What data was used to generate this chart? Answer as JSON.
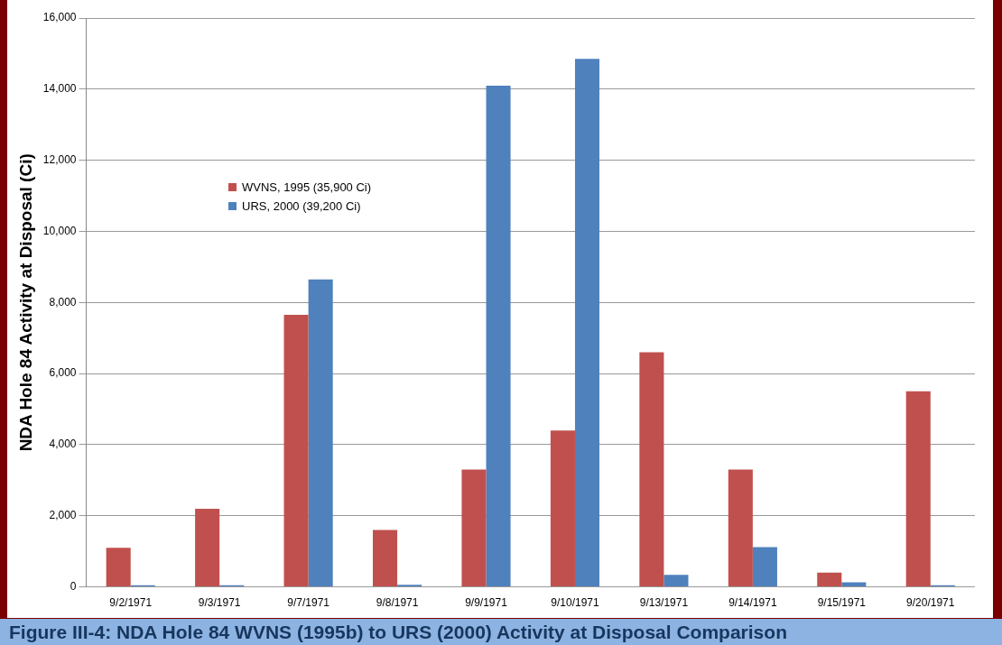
{
  "chart_data": {
    "type": "bar",
    "ylabel": "NDA Hole 84 Activity at Disposal (Ci)",
    "categories": [
      "9/2/1971",
      "9/3/1971",
      "9/7/1971",
      "9/8/1971",
      "9/9/1971",
      "9/10/1971",
      "9/13/1971",
      "9/14/1971",
      "9/15/1971",
      "9/20/1971"
    ],
    "series": [
      {
        "name": "WVNS, 1995  (35,900  Ci)",
        "color": "#c0504d",
        "values": [
          1100,
          2200,
          7650,
          1600,
          3300,
          4400,
          6600,
          3300,
          400,
          5500
        ]
      },
      {
        "name": "URS, 2000  (39,200  Ci)",
        "color": "#4f81bd",
        "values": [
          50,
          50,
          8650,
          60,
          14100,
          14850,
          340,
          1120,
          130,
          50
        ]
      }
    ],
    "ylim": [
      0,
      16000
    ],
    "yticks": [
      {
        "value": 0,
        "label": "0"
      },
      {
        "value": 2000,
        "label": "2,000"
      },
      {
        "value": 4000,
        "label": "4,000"
      },
      {
        "value": 6000,
        "label": "6,000"
      },
      {
        "value": 8000,
        "label": "8,000"
      },
      {
        "value": 10000,
        "label": "10,000"
      },
      {
        "value": 12000,
        "label": "12,000"
      },
      {
        "value": 14000,
        "label": "14,000"
      },
      {
        "value": 16000,
        "label": "16,000"
      }
    ],
    "grid": "y",
    "legend": "top left",
    "annotations": [
      "Figure III-4: NDA Hole 84 WVNS (1995b) to URS (2000) Activity at Disposal Comparison"
    ]
  }
}
